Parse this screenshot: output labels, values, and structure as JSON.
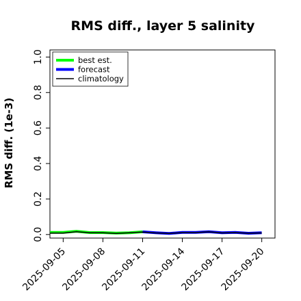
{
  "chart_data": {
    "type": "line",
    "title": "RMS diff., layer 5 salinity",
    "ylabel": "RMS diff. (1e-3)",
    "xlabel": "",
    "x_ticks": [
      "2025-09-05",
      "2025-09-08",
      "2025-09-11",
      "2025-09-14",
      "2025-09-17",
      "2025-09-20"
    ],
    "highlight_tick": "2025-09-11",
    "highlight_color": "#228b22",
    "y_ticks": [
      "0.0",
      "0.2",
      "0.4",
      "0.6",
      "0.8",
      "1.0"
    ],
    "xlim": [
      "2025-09-04",
      "2025-09-21"
    ],
    "ylim": [
      -0.02,
      1.04
    ],
    "grid": false,
    "legend_position": "top-left",
    "series": [
      {
        "name": "best est.",
        "color": "#00ff00",
        "x": [
          "2025-09-04",
          "2025-09-05",
          "2025-09-06",
          "2025-09-07",
          "2025-09-08",
          "2025-09-09",
          "2025-09-10",
          "2025-09-11"
        ],
        "values": [
          0.012,
          0.012,
          0.018,
          0.011,
          0.011,
          0.008,
          0.01,
          0.015
        ]
      },
      {
        "name": "forecast",
        "color": "#0000ff",
        "x": [
          "2025-09-11",
          "2025-09-12",
          "2025-09-13",
          "2025-09-14",
          "2025-09-15",
          "2025-09-16",
          "2025-09-17",
          "2025-09-18",
          "2025-09-19",
          "2025-09-20"
        ],
        "values": [
          0.015,
          0.01,
          0.006,
          0.012,
          0.012,
          0.016,
          0.01,
          0.012,
          0.007,
          0.01
        ]
      },
      {
        "name": "climatology",
        "color": "#000000",
        "x": [
          "2025-09-04",
          "2025-09-05",
          "2025-09-06",
          "2025-09-07",
          "2025-09-08",
          "2025-09-09",
          "2025-09-10",
          "2025-09-11",
          "2025-09-12",
          "2025-09-13",
          "2025-09-14",
          "2025-09-15",
          "2025-09-16",
          "2025-09-17",
          "2025-09-18",
          "2025-09-19",
          "2025-09-20"
        ],
        "values": [
          0.008,
          0.008,
          0.016,
          0.01,
          0.01,
          0.006,
          0.01,
          0.014,
          0.009,
          0.006,
          0.011,
          0.011,
          0.015,
          0.009,
          0.011,
          0.007,
          0.009
        ]
      }
    ]
  }
}
